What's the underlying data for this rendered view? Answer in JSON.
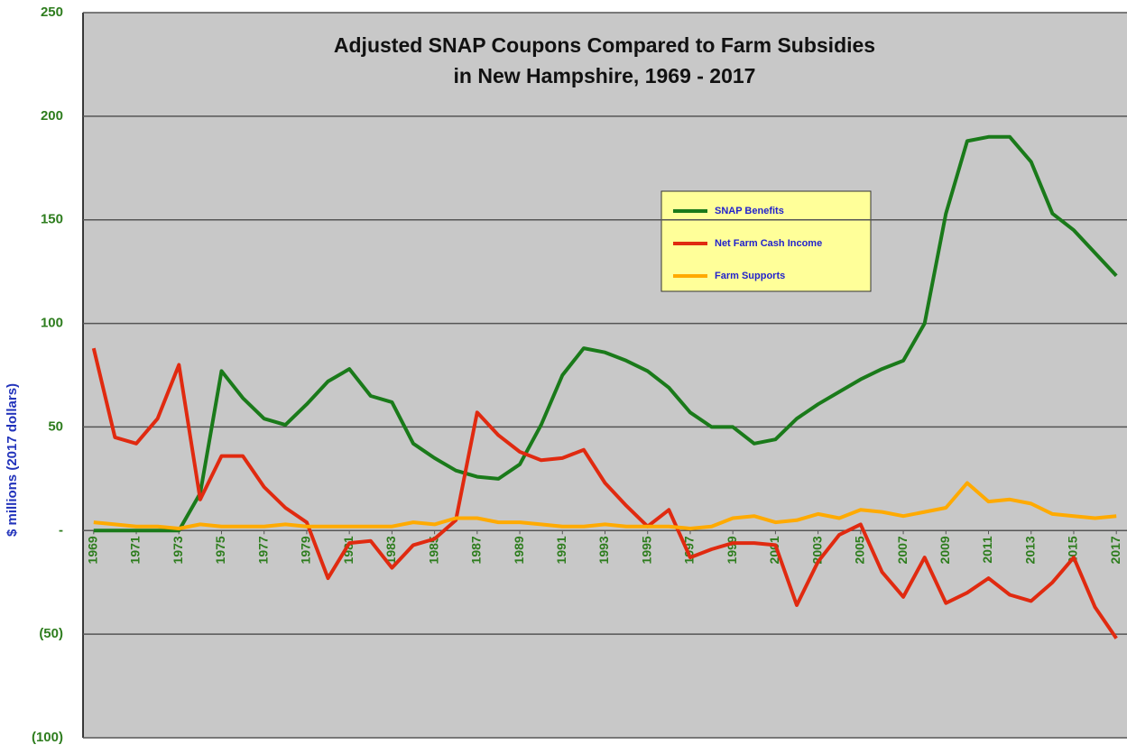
{
  "chart_data": {
    "type": "line",
    "title": [
      "Adjusted SNAP Coupons Compared to Farm Subsidies",
      "in New Hampshire,  1969 - 2017"
    ],
    "ylabel": "$ millions (2017 dollars)",
    "x": [
      1969,
      1970,
      1971,
      1972,
      1973,
      1974,
      1975,
      1976,
      1977,
      1978,
      1979,
      1980,
      1981,
      1982,
      1983,
      1984,
      1985,
      1986,
      1987,
      1988,
      1989,
      1990,
      1991,
      1992,
      1993,
      1994,
      1995,
      1996,
      1997,
      1998,
      1999,
      2000,
      2001,
      2002,
      2003,
      2004,
      2005,
      2006,
      2007,
      2008,
      2009,
      2010,
      2011,
      2012,
      2013,
      2014,
      2015,
      2016,
      2017
    ],
    "xlim": [
      1968.5,
      2017.5
    ],
    "xticks": [
      1969,
      1971,
      1973,
      1975,
      1977,
      1979,
      1981,
      1983,
      1985,
      1987,
      1989,
      1991,
      1993,
      1995,
      1997,
      1999,
      2001,
      2003,
      2005,
      2007,
      2009,
      2011,
      2013,
      2015,
      2017
    ],
    "ylim": [
      -100,
      250
    ],
    "yticks": [
      250,
      200,
      150,
      100,
      50,
      {
        "value": 0,
        "label": "-"
      },
      {
        "value": -50,
        "label": "(50)"
      },
      {
        "value": -100,
        "label": "(100)"
      }
    ],
    "grid": true,
    "series": [
      {
        "name": "SNAP Benefits",
        "color": "#1a7a1a",
        "values": [
          0,
          0,
          0,
          0,
          0,
          18,
          77,
          64,
          54,
          51,
          61,
          72,
          78,
          65,
          62,
          42,
          35,
          29,
          26,
          25,
          32,
          51,
          75,
          88,
          86,
          82,
          77,
          69,
          57,
          50,
          50,
          42,
          44,
          54,
          61,
          67,
          73,
          78,
          82,
          100,
          153,
          188,
          190,
          190,
          178,
          153,
          145,
          134,
          123
        ]
      },
      {
        "name": "Net Farm Cash Income",
        "color": "#e02a10",
        "values": [
          88,
          45,
          42,
          54,
          80,
          15,
          36,
          36,
          21,
          11,
          4,
          -23,
          -6,
          -5,
          -18,
          -7,
          -4,
          5,
          57,
          46,
          38,
          34,
          35,
          39,
          23,
          12,
          2,
          10,
          -13,
          -9,
          -6,
          -6,
          -7,
          -36,
          -15,
          -2,
          3,
          -20,
          -32,
          -13,
          -35,
          -30,
          -23,
          -31,
          -34,
          -25,
          -13,
          -37,
          -52
        ]
      },
      {
        "name": "Farm Supports",
        "color": "#ffaa00",
        "values": [
          4,
          3,
          2,
          2,
          1,
          3,
          2,
          2,
          2,
          3,
          2,
          2,
          2,
          2,
          2,
          4,
          3,
          6,
          6,
          4,
          4,
          3,
          2,
          2,
          3,
          2,
          2,
          2,
          1,
          2,
          6,
          7,
          4,
          5,
          8,
          6,
          10,
          9,
          7,
          9,
          11,
          23,
          14,
          15,
          13,
          8,
          7,
          6,
          7
        ]
      }
    ]
  }
}
